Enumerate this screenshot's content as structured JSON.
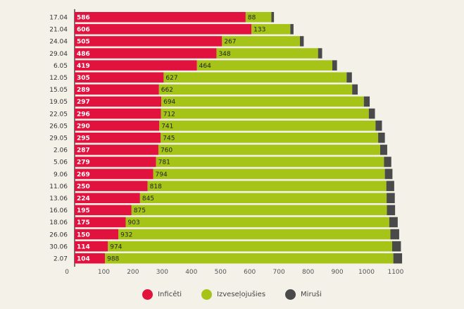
{
  "chart_data": {
    "type": "bar",
    "orientation": "horizontal",
    "stacked": true,
    "title": "",
    "xlabel": "",
    "ylabel": "",
    "categories": [
      "17.04",
      "21.04",
      "24.04",
      "29.04",
      "6.05",
      "12.05",
      "15.05",
      "19.05",
      "22.05",
      "26.05",
      "29.05",
      "2.06",
      "5.06",
      "9.06",
      "11.06",
      "13.06",
      "16.06",
      "18.06",
      "26.06",
      "30.06",
      "2.07"
    ],
    "series": [
      {
        "name": "Inficēti",
        "color": "#e2123f",
        "values": [
          586,
          606,
          505,
          486,
          419,
          305,
          289,
          297,
          296,
          290,
          295,
          287,
          279,
          269,
          250,
          224,
          195,
          175,
          150,
          114,
          104
        ]
      },
      {
        "name": "Izveseļojušies",
        "color": "#a6c318",
        "values": [
          88,
          133,
          267,
          348,
          464,
          627,
          662,
          694,
          712,
          741,
          745,
          760,
          781,
          794,
          818,
          845,
          875,
          903,
          932,
          974,
          988
        ]
      },
      {
        "name": "Miruši",
        "color": "#4a4a4a",
        "values": [
          9,
          11,
          13,
          14,
          16,
          18,
          19,
          20,
          21,
          22,
          23,
          24,
          25,
          26,
          27,
          28,
          28,
          29,
          30,
          30,
          30
        ]
      }
    ],
    "show_value_labels": [
      "Inficēti",
      "Izveseļojušies"
    ],
    "x_ticks": [
      0,
      100,
      200,
      300,
      400,
      500,
      600,
      700,
      800,
      900,
      1000,
      1100
    ],
    "xlim": [
      0,
      1150
    ],
    "grid": false,
    "legend_position": "bottom-center"
  }
}
